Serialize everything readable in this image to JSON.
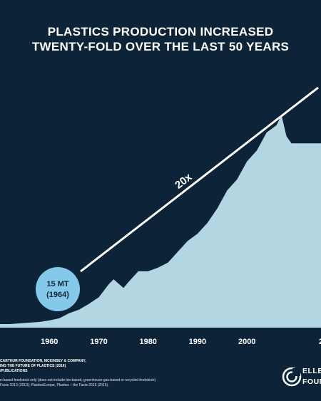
{
  "title_line1": "PLASTICS PRODUCTION INCREASED",
  "title_line2": "TWENTY-FOLD OVER THE LAST 50 YEARS",
  "chart_data": {
    "type": "area",
    "x": [
      1950,
      1952,
      1954,
      1956,
      1958,
      1960,
      1962,
      1964,
      1966,
      1968,
      1970,
      1972,
      1973,
      1974,
      1975,
      1976,
      1978,
      1980,
      1982,
      1984,
      1986,
      1988,
      1990,
      1992,
      1994,
      1996,
      1998,
      2000,
      2002,
      2004,
      2006,
      2007,
      2008,
      2009
    ],
    "values": [
      0,
      0,
      1,
      2,
      3,
      5,
      8,
      15,
      20,
      28,
      37,
      55,
      62,
      56,
      50,
      58,
      73,
      73,
      78,
      85,
      100,
      115,
      125,
      140,
      160,
      185,
      200,
      225,
      240,
      265,
      275,
      289,
      260,
      250
    ],
    "xticks": [
      1960,
      1970,
      1980,
      1990,
      2000
    ],
    "xtick_labels": [
      "1960",
      "1970",
      "1980",
      "1990",
      "2000"
    ],
    "xlim": [
      1950,
      2015
    ],
    "ylim": [
      0,
      330
    ],
    "colors": {
      "area": "#b3d6e3",
      "background": "#0d2438",
      "line": "#ffffff",
      "bubble": "#84c8ea"
    },
    "annotations": {
      "start_value": "15 MT",
      "start_year": "(1964)",
      "growth_label": "20x"
    }
  },
  "footer": {
    "source_line1": "CARTHUR FOUNDATION, MCKINSEY & COMPANY,",
    "source_line2": "ING THE FUTURE OF PLASTICS (2016)",
    "source_line3": "/PUBLICATIONS",
    "note_line1": "n-based feedstock only (does not include bio-based, greenhouse gas-based or recycled feedstock)",
    "note_line2": "Facts 2013 (2013); PlasticsEurope, Plastics – the Facts 2015 (2015)."
  },
  "logo": {
    "line1": "ELLE",
    "line2": "FOUN"
  },
  "partial_tick": "2"
}
